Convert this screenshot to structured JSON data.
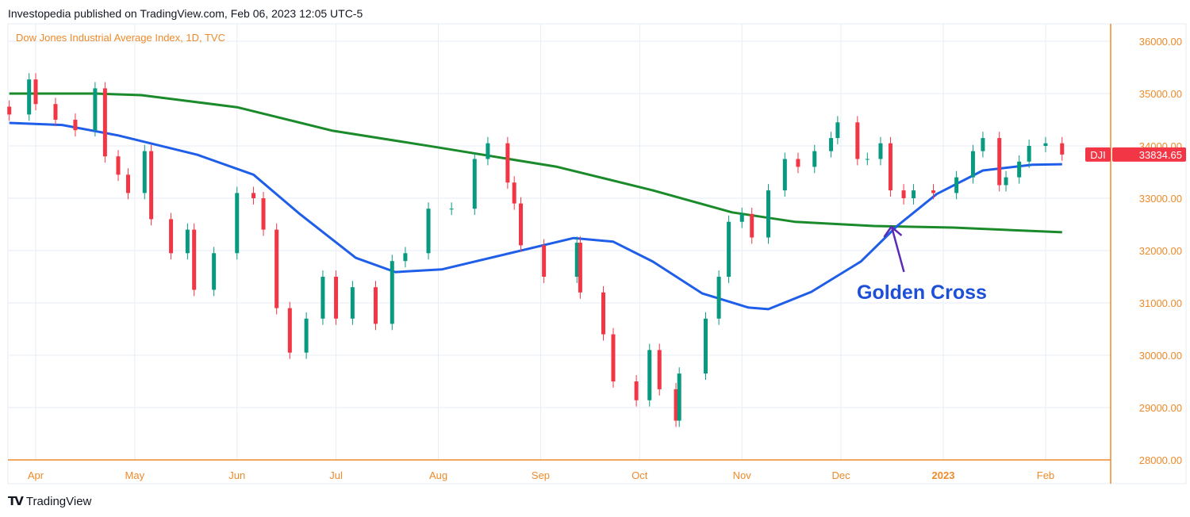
{
  "header": {
    "published": "Investopedia published on TradingView.com, Feb 06, 2023 12:05 UTC-5"
  },
  "footer": {
    "logo_text": "TradingView"
  },
  "chart_data": {
    "type": "candlestick",
    "title": "Dow Jones Industrial Average Index, 1D, TVC",
    "colors": {
      "up": "#089981",
      "down": "#f23645",
      "sma50": "#1f5ee8",
      "sma200": "#1a8a2a",
      "axis": "#ef8a2a",
      "grid": "#e6eef5"
    },
    "y_ticks": [
      36000,
      35000,
      34000,
      33000,
      32000,
      31000,
      30000,
      29000,
      28000
    ],
    "y_tick_labels": [
      "36000.00",
      "35000.00",
      "34000.00",
      "33000.00",
      "32000.00",
      "31000.00",
      "30000.00",
      "29000.00",
      "28000.00"
    ],
    "ylim": [
      28000,
      36000
    ],
    "x_ticks": [
      {
        "date": "2022-04-01",
        "label": "Apr"
      },
      {
        "date": "2022-05-01",
        "label": "May"
      },
      {
        "date": "2022-06-01",
        "label": "Jun"
      },
      {
        "date": "2022-07-01",
        "label": "Jul"
      },
      {
        "date": "2022-08-01",
        "label": "Aug"
      },
      {
        "date": "2022-09-01",
        "label": "Sep"
      },
      {
        "date": "2022-10-01",
        "label": "Oct"
      },
      {
        "date": "2022-11-01",
        "label": "Nov"
      },
      {
        "date": "2022-12-01",
        "label": "Dec"
      },
      {
        "date": "2023-01-01",
        "label": "2023"
      },
      {
        "date": "2023-02-01",
        "label": "Feb"
      }
    ],
    "last_price": {
      "symbol": "DJI",
      "value": "33834.65",
      "price": 33834.65
    },
    "closes": [
      [
        "2022-03-24",
        34600
      ],
      [
        "2022-03-30",
        35270
      ],
      [
        "2022-04-01",
        34800
      ],
      [
        "2022-04-07",
        34500
      ],
      [
        "2022-04-13",
        34300
      ],
      [
        "2022-04-19",
        35100
      ],
      [
        "2022-04-22",
        33800
      ],
      [
        "2022-04-26",
        33450
      ],
      [
        "2022-04-29",
        33100
      ],
      [
        "2022-05-04",
        33900
      ],
      [
        "2022-05-06",
        32600
      ],
      [
        "2022-05-12",
        31950
      ],
      [
        "2022-05-17",
        32400
      ],
      [
        "2022-05-19",
        31250
      ],
      [
        "2022-05-25",
        31950
      ],
      [
        "2022-06-01",
        33100
      ],
      [
        "2022-06-06",
        33000
      ],
      [
        "2022-06-09",
        32400
      ],
      [
        "2022-06-13",
        30900
      ],
      [
        "2022-06-17",
        30050
      ],
      [
        "2022-06-22",
        30700
      ],
      [
        "2022-06-27",
        31500
      ],
      [
        "2022-07-01",
        30700
      ],
      [
        "2022-07-06",
        31300
      ],
      [
        "2022-07-13",
        30600
      ],
      [
        "2022-07-18",
        31800
      ],
      [
        "2022-07-22",
        31950
      ],
      [
        "2022-07-29",
        32800
      ],
      [
        "2022-08-05",
        32800
      ],
      [
        "2022-08-12",
        33750
      ],
      [
        "2022-08-16",
        34050
      ],
      [
        "2022-08-22",
        33300
      ],
      [
        "2022-08-24",
        32900
      ],
      [
        "2022-08-26",
        32100
      ],
      [
        "2022-09-02",
        31500
      ],
      [
        "2022-09-12",
        32150
      ],
      [
        "2022-09-13",
        31200
      ],
      [
        "2022-09-20",
        30400
      ],
      [
        "2022-09-23",
        29500
      ],
      [
        "2022-09-30",
        29140
      ],
      [
        "2022-10-04",
        30100
      ],
      [
        "2022-10-07",
        29350
      ],
      [
        "2022-10-12",
        28750
      ],
      [
        "2022-10-13",
        29650
      ],
      [
        "2022-10-21",
        30700
      ],
      [
        "2022-10-25",
        31500
      ],
      [
        "2022-10-28",
        32550
      ],
      [
        "2022-11-01",
        32700
      ],
      [
        "2022-11-04",
        32250
      ],
      [
        "2022-11-09",
        33150
      ],
      [
        "2022-11-14",
        33750
      ],
      [
        "2022-11-18",
        33600
      ],
      [
        "2022-11-23",
        33900
      ],
      [
        "2022-11-28",
        34150
      ],
      [
        "2022-11-30",
        34450
      ],
      [
        "2022-12-06",
        33750
      ],
      [
        "2022-12-09",
        33750
      ],
      [
        "2022-12-13",
        34050
      ],
      [
        "2022-12-16",
        33150
      ],
      [
        "2022-12-20",
        33000
      ],
      [
        "2022-12-23",
        33150
      ],
      [
        "2022-12-29",
        33100
      ],
      [
        "2023-01-05",
        33400
      ],
      [
        "2023-01-10",
        33900
      ],
      [
        "2023-01-13",
        34150
      ],
      [
        "2023-01-18",
        33250
      ],
      [
        "2023-01-20",
        33400
      ],
      [
        "2023-01-24",
        33700
      ],
      [
        "2023-01-27",
        34000
      ],
      [
        "2023-02-01",
        34050
      ],
      [
        "2023-02-06",
        33834.65
      ]
    ],
    "series": [
      {
        "key": "sma200",
        "values": [
          [
            "2022-03-24",
            35000
          ],
          [
            "2022-04-19",
            35000
          ],
          [
            "2022-05-03",
            34970
          ],
          [
            "2022-06-01",
            34740
          ],
          [
            "2022-06-30",
            34290
          ],
          [
            "2022-07-31",
            33980
          ],
          [
            "2022-09-06",
            33600
          ],
          [
            "2022-10-05",
            33150
          ],
          [
            "2022-10-29",
            32730
          ],
          [
            "2022-11-17",
            32550
          ],
          [
            "2022-12-11",
            32470
          ],
          [
            "2023-01-04",
            32440
          ],
          [
            "2023-02-06",
            32350
          ]
        ]
      },
      {
        "key": "sma50",
        "values": [
          [
            "2022-03-24",
            34440
          ],
          [
            "2022-04-09",
            34400
          ],
          [
            "2022-04-26",
            34200
          ],
          [
            "2022-05-20",
            33830
          ],
          [
            "2022-06-06",
            33450
          ],
          [
            "2022-06-20",
            32700
          ],
          [
            "2022-07-07",
            31860
          ],
          [
            "2022-07-19",
            31590
          ],
          [
            "2022-08-02",
            31640
          ],
          [
            "2022-08-22",
            31940
          ],
          [
            "2022-09-11",
            32240
          ],
          [
            "2022-09-23",
            32170
          ],
          [
            "2022-10-05",
            31790
          ],
          [
            "2022-10-20",
            31180
          ],
          [
            "2022-11-03",
            30910
          ],
          [
            "2022-11-09",
            30880
          ],
          [
            "2022-11-22",
            31210
          ],
          [
            "2022-12-07",
            31790
          ],
          [
            "2022-12-18",
            32470
          ],
          [
            "2022-12-30",
            33080
          ],
          [
            "2023-01-13",
            33530
          ],
          [
            "2023-01-28",
            33640
          ],
          [
            "2023-02-06",
            33650
          ]
        ]
      }
    ],
    "annotation": {
      "text": "Golden Cross",
      "date": "2022-12-16",
      "price": 32470
    }
  }
}
